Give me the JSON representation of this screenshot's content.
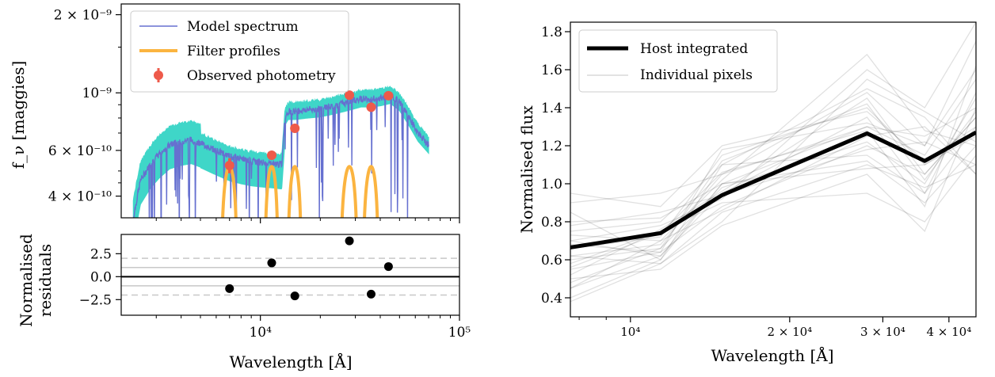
{
  "chart_data": [
    {
      "type": "line",
      "panel": "sed-main",
      "ylabel": "f_ν [maggies]",
      "xscale": "log",
      "yscale": "log",
      "xlim": [
        2000,
        100000
      ],
      "ylim": [
        3.3e-10,
        2.2e-09
      ],
      "yticks": [
        {
          "value": 2e-09,
          "label": "2 × 10⁻⁹"
        },
        {
          "value": 1e-09,
          "label": "10⁻⁹"
        },
        {
          "value": 6e-10,
          "label": "6 × 10⁻¹⁰"
        },
        {
          "value": 4e-10,
          "label": "4 × 10⁻¹⁰"
        }
      ],
      "legend": {
        "placement": "upper-left",
        "entries": [
          "Model spectrum",
          "Filter profiles",
          "Observed photometry"
        ]
      },
      "colors": {
        "model": "#6670d0",
        "uncertainty": "#3fd6c8",
        "filter": "#fbb440",
        "photometry": "#ee5a4a"
      },
      "series": [
        {
          "name": "Model spectrum",
          "x": [
            2300,
            2500,
            2800,
            3100,
            3500,
            4000,
            4500,
            5000,
            6000,
            7000,
            8000,
            9000,
            10000,
            11500,
            12800,
            13300,
            13800,
            15000,
            17000,
            20000,
            23000,
            26000,
            29000,
            32000,
            36000,
            40000,
            45000,
            50000,
            55000,
            62000,
            70000
          ],
          "y": [
            3.3e-10,
            4.6e-10,
            5.3e-10,
            5.8e-10,
            6.3e-10,
            6.5e-10,
            6.6e-10,
            6.4e-10,
            6e-10,
            5.7e-10,
            5.55e-10,
            5.45e-10,
            5.4e-10,
            5.35e-10,
            5.3e-10,
            8.1e-10,
            8.5e-10,
            8.5e-10,
            8.6e-10,
            8.7e-10,
            8.9e-10,
            9.1e-10,
            9.3e-10,
            9.5e-10,
            9.5e-10,
            9.6e-10,
            9.8e-10,
            9.2e-10,
            8.2e-10,
            7e-10,
            6.3e-10
          ]
        },
        {
          "name": "Observed photometry",
          "x": [
            7000,
            11400,
            14900,
            28000,
            36000,
            44000
          ],
          "y": [
            5.25e-10,
            5.75e-10,
            7.3e-10,
            9.8e-10,
            8.8e-10,
            9.75e-10
          ],
          "yerr": [
            3.5e-11,
            0.0,
            0.0,
            0.0,
            0.0,
            0.0
          ]
        }
      ],
      "filters": [
        {
          "center": 7000,
          "width": 1300
        },
        {
          "center": 11400,
          "width": 1800
        },
        {
          "center": 14900,
          "width": 2400
        },
        {
          "center": 28000,
          "width": 5500
        },
        {
          "center": 36000,
          "width": 6500
        }
      ]
    },
    {
      "type": "scatter",
      "panel": "residuals",
      "xlabel": "Wavelength [Å]",
      "ylabel_lines": [
        "Normalised",
        "residuals"
      ],
      "xscale": "log",
      "xlim": [
        2000,
        100000
      ],
      "ylim": [
        -4.2,
        4.6
      ],
      "xticks": [
        {
          "value": 10000,
          "label": "10⁴"
        },
        {
          "value": 100000,
          "label": "10⁵"
        }
      ],
      "yticks": [
        {
          "value": 2.5,
          "label": "2.5"
        },
        {
          "value": 0.0,
          "label": "0.0"
        },
        {
          "value": -2.5,
          "label": "−2.5"
        }
      ],
      "hlines_dashed": [
        2,
        -2
      ],
      "hlines_solid_grey": [
        1,
        -1
      ],
      "hline_zero": 0,
      "x": [
        7000,
        11400,
        14900,
        28000,
        36000,
        44000
      ],
      "y": [
        -1.3,
        1.5,
        -2.1,
        3.9,
        -1.9,
        1.1
      ]
    },
    {
      "type": "line",
      "panel": "pixels",
      "xlabel": "Wavelength [Å]",
      "ylabel": "Normalised flux",
      "xscale": "log",
      "xlim": [
        7700,
        45000
      ],
      "ylim": [
        0.3,
        1.85
      ],
      "xticks": [
        {
          "value": 10000,
          "label": "10⁴"
        },
        {
          "value": 20000,
          "label": "2 × 10⁴"
        },
        {
          "value": 30000,
          "label": "3 × 10⁴"
        },
        {
          "value": 40000,
          "label": "4 × 10⁴"
        }
      ],
      "yticks": [
        {
          "value": 0.4,
          "label": "0.4"
        },
        {
          "value": 0.6,
          "label": "0.6"
        },
        {
          "value": 0.8,
          "label": "0.8"
        },
        {
          "value": 1.0,
          "label": "1.0"
        },
        {
          "value": 1.2,
          "label": "1.2"
        },
        {
          "value": 1.4,
          "label": "1.4"
        },
        {
          "value": 1.6,
          "label": "1.6"
        },
        {
          "value": 1.8,
          "label": "1.8"
        }
      ],
      "legend": {
        "placement": "upper-left",
        "entries": [
          "Host integrated",
          "Individual pixels"
        ]
      },
      "x": [
        7700,
        11400,
        14900,
        28000,
        36000,
        45000
      ],
      "series": [
        {
          "name": "Host integrated",
          "values": [
            0.665,
            0.74,
            0.94,
            1.265,
            1.12,
            1.27
          ]
        }
      ],
      "pixels": [
        [
          0.45,
          0.62,
          0.95,
          1.35,
          0.95,
          1.3
        ],
        [
          0.62,
          0.68,
          1.05,
          1.48,
          1.2,
          1.75
        ],
        [
          0.8,
          0.82,
          1.0,
          1.12,
          0.9,
          1.2
        ],
        [
          0.55,
          0.64,
          0.88,
          1.2,
          1.05,
          1.35
        ],
        [
          0.7,
          0.78,
          0.92,
          1.6,
          1.4,
          1.85
        ],
        [
          0.38,
          0.58,
          0.85,
          1.1,
          0.98,
          1.1
        ],
        [
          0.9,
          0.95,
          1.05,
          1.3,
          1.25,
          1.4
        ],
        [
          0.66,
          0.72,
          1.15,
          1.4,
          1.1,
          1.28
        ],
        [
          0.5,
          0.55,
          0.78,
          1.05,
          0.75,
          1.4
        ],
        [
          0.75,
          0.8,
          1.1,
          1.5,
          1.35,
          1.05
        ],
        [
          0.6,
          0.66,
          0.98,
          1.22,
          1.0,
          1.45
        ],
        [
          0.85,
          0.6,
          1.0,
          1.3,
          1.15,
          1.55
        ],
        [
          0.45,
          0.7,
          1.02,
          1.68,
          1.28,
          1.2
        ],
        [
          0.58,
          0.75,
          0.9,
          0.95,
          0.8,
          1.15
        ],
        [
          0.68,
          0.64,
          1.18,
          1.32,
          1.2,
          1.6
        ],
        [
          0.52,
          0.76,
          0.96,
          1.45,
          1.05,
          1.35
        ],
        [
          0.73,
          0.7,
          0.86,
          1.25,
          1.3,
          1.05
        ],
        [
          0.4,
          0.6,
          1.1,
          1.15,
          0.95,
          1.48
        ],
        [
          0.95,
          0.88,
          1.2,
          1.38,
          1.12,
          1.3
        ],
        [
          0.62,
          0.58,
          0.8,
          1.55,
          1.38,
          1.22
        ],
        [
          0.56,
          0.74,
          1.06,
          1.28,
          0.88,
          1.62
        ],
        [
          0.78,
          0.85,
          0.94,
          1.18,
          1.22,
          1.1
        ],
        [
          0.48,
          0.66,
          1.12,
          1.42,
          1.02,
          1.38
        ],
        [
          0.7,
          0.62,
          1.0,
          1.08,
          1.1,
          1.25
        ]
      ]
    }
  ]
}
